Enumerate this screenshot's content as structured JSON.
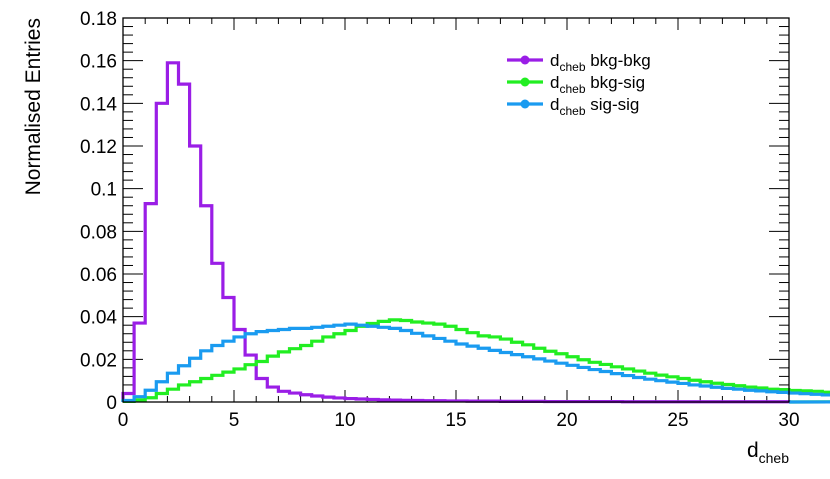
{
  "chart_data": {
    "type": "line",
    "step": true,
    "xlabel": "d",
    "xlabel_sub": "cheb",
    "ylabel": "Normalised Entries",
    "xlim": [
      0,
      30
    ],
    "ylim": [
      0,
      0.18
    ],
    "xticks": [
      0,
      5,
      10,
      15,
      20,
      25,
      30
    ],
    "xtick_labels": [
      "0",
      "5",
      "10",
      "15",
      "20",
      "25",
      "30"
    ],
    "yticks": [
      0,
      0.02,
      0.04,
      0.06,
      0.08,
      0.1,
      0.12,
      0.14,
      0.16,
      0.18
    ],
    "ytick_labels": [
      "0",
      "0.02",
      "0.04",
      "0.06",
      "0.08",
      "0.1",
      "0.12",
      "0.14",
      "0.16",
      "0.18"
    ],
    "legend_position": "top-right",
    "bin_width": 0.5,
    "series": [
      {
        "name": "bkg-bkg",
        "legend_prefix": "d",
        "legend_sub": "cheb",
        "color": "#9a1ee6",
        "values": [
          0.004,
          0.037,
          0.093,
          0.14,
          0.159,
          0.149,
          0.12,
          0.092,
          0.065,
          0.049,
          0.034,
          0.022,
          0.011,
          0.007,
          0.005,
          0.0042,
          0.0034,
          0.0028,
          0.0023,
          0.0019,
          0.0016,
          0.0014,
          0.0012,
          0.001,
          0.0009,
          0.0008,
          0.0007,
          0.0006,
          0.0006,
          0.0005,
          0.0005,
          0.0004,
          0.0004,
          0.0004,
          0.0003,
          0.0003,
          0.0003,
          0.0003,
          0.0002,
          0.0002,
          0.0002,
          0.0002,
          0.0002,
          0.0002,
          0.0002,
          0.0001,
          0.0001,
          0.0001,
          0.0001,
          0.0001,
          0.0001,
          0.0001,
          0.0001,
          0.0001,
          0.0001,
          0.0001,
          0.0001,
          0.0001,
          0.0001,
          0.0001
        ]
      },
      {
        "name": "bkg-sig",
        "legend_prefix": "d",
        "legend_sub": "cheb",
        "color": "#22ee22",
        "values": [
          0.0003,
          0.001,
          0.002,
          0.004,
          0.006,
          0.008,
          0.0095,
          0.011,
          0.0125,
          0.014,
          0.0155,
          0.0175,
          0.019,
          0.0215,
          0.0235,
          0.025,
          0.0265,
          0.0285,
          0.0305,
          0.032,
          0.0335,
          0.0355,
          0.0368,
          0.0378,
          0.0385,
          0.0382,
          0.0375,
          0.037,
          0.0365,
          0.0355,
          0.034,
          0.0325,
          0.031,
          0.0305,
          0.0295,
          0.028,
          0.0268,
          0.0252,
          0.0238,
          0.0226,
          0.0212,
          0.0198,
          0.0186,
          0.0176,
          0.0165,
          0.0155,
          0.0145,
          0.0135,
          0.0126,
          0.0118,
          0.011,
          0.0102,
          0.0095,
          0.0088,
          0.0082,
          0.0076,
          0.007,
          0.0066,
          0.006,
          0.0058,
          0.0054,
          0.0052,
          0.005,
          0.0046,
          0.0042,
          0.0038,
          0.0034,
          0.003,
          0.0027,
          0.0024,
          0.0021,
          0.0018,
          0.0015,
          0.0012,
          0.001,
          0.0008,
          0.0007,
          0.0006,
          0.0005,
          0.0004
        ]
      },
      {
        "name": "sig-sig",
        "legend_prefix": "d",
        "legend_sub": "cheb",
        "color": "#1a9bf0",
        "values": [
          0.0007,
          0.0025,
          0.0055,
          0.0095,
          0.0135,
          0.017,
          0.0205,
          0.024,
          0.0265,
          0.0285,
          0.0305,
          0.032,
          0.033,
          0.0335,
          0.034,
          0.0345,
          0.0345,
          0.035,
          0.0355,
          0.036,
          0.0365,
          0.036,
          0.0355,
          0.035,
          0.0345,
          0.0335,
          0.0322,
          0.031,
          0.0298,
          0.0285,
          0.0272,
          0.0262,
          0.0252,
          0.0242,
          0.0232,
          0.0222,
          0.0212,
          0.0202,
          0.0192,
          0.0182,
          0.0172,
          0.0162,
          0.0152,
          0.0143,
          0.0133,
          0.0124,
          0.0115,
          0.0107,
          0.01,
          0.0093,
          0.0087,
          0.008,
          0.0075,
          0.0069,
          0.0064,
          0.006,
          0.0055,
          0.0052,
          0.0048,
          0.0045,
          0.0042,
          0.0039,
          0.0036,
          0.0033,
          0.003,
          0.0027,
          0.0025,
          0.0023,
          0.0021,
          0.0019,
          0.0017,
          0.0015,
          0.0013,
          0.0011,
          0.001,
          0.0008,
          0.0007,
          0.0006,
          0.0004,
          0.0002
        ]
      }
    ]
  }
}
